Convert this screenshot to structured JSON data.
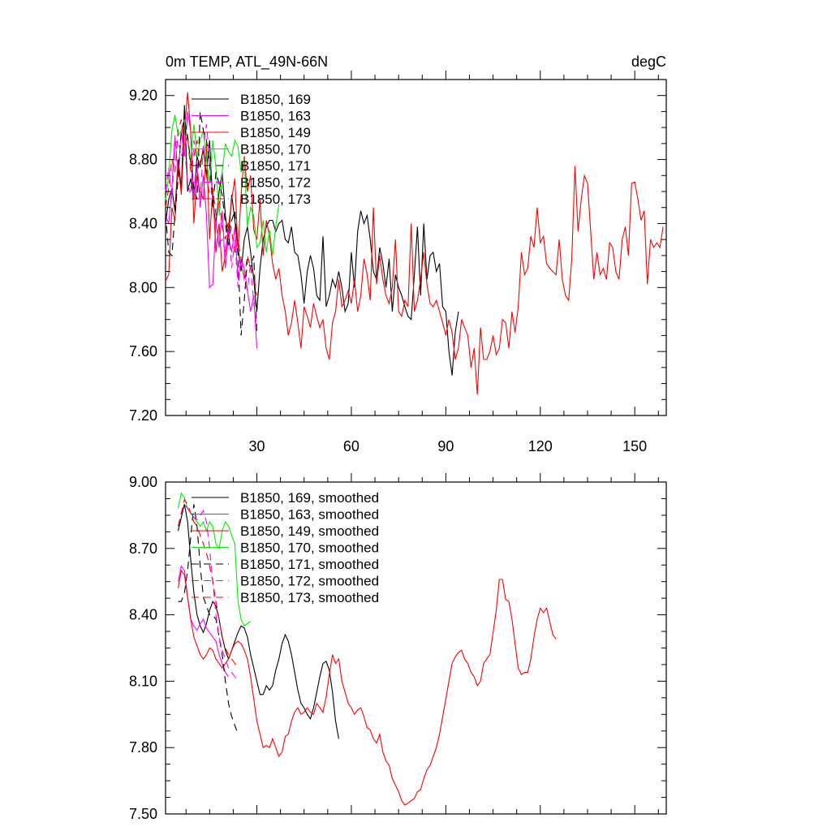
{
  "figure": {
    "title_left": "0m TEMP, ATL_49N-66N",
    "title_right": "degC"
  },
  "chart_data": [
    {
      "type": "line",
      "title": "0m TEMP, ATL_49N-66N",
      "units": "degC",
      "xlabel": "",
      "ylabel": "",
      "xlim": [
        1,
        160
      ],
      "ylim": [
        7.2,
        9.3
      ],
      "x_ticks": [
        30,
        60,
        90,
        120,
        150
      ],
      "x_tick_labels": [
        "30",
        "60",
        "90",
        "120",
        "150"
      ],
      "y_ticks": [
        7.2,
        7.6,
        8.0,
        8.4,
        8.8,
        9.2
      ],
      "y_tick_labels": [
        "7.20",
        "7.60",
        "8.00",
        "8.40",
        "8.80",
        "9.20"
      ],
      "grid": false,
      "legend_position": "top-left",
      "series": [
        {
          "name": "B1850, 169",
          "color": "#000000",
          "dash": "solid",
          "x_start": 1,
          "values": [
            8.4,
            8.55,
            8.62,
            8.48,
            8.8,
            8.62,
            9.14,
            8.6,
            8.68,
            8.55,
            8.82,
            8.75,
            8.88,
            8.7,
            8.92,
            8.52,
            8.4,
            8.6,
            8.72,
            8.45,
            8.3,
            8.58,
            8.42,
            8.25,
            8.1,
            8.3,
            8.38,
            8.22,
            8.05,
            7.85,
            8.12,
            8.3,
            8.38,
            8.42,
            8.42,
            8.35,
            8.4,
            8.42,
            8.3,
            8.28,
            8.38,
            8.22,
            8.2,
            8.08,
            7.9,
            8.1,
            8.2,
            8.12,
            7.95,
            7.92,
            8.32,
            7.88,
            7.95,
            8.05,
            8.0,
            8.1,
            8.0,
            7.85,
            7.9,
            8.22,
            8.0,
            8.35,
            8.48,
            8.4,
            8.45,
            8.3,
            8.1,
            8.05,
            8.25,
            8.15,
            8.0,
            8.18,
            7.85,
            8.08,
            8.0,
            7.95,
            7.88,
            7.82,
            7.8,
            8.08,
            8.38,
            7.95,
            8.4,
            8.05,
            8.2,
            8.22,
            8.1,
            8.15,
            7.88,
            7.85,
            7.6,
            7.45,
            7.72,
            7.85
          ],
          "note": ""
        },
        {
          "name": "B1850, 163",
          "color": "#ff00ff",
          "dash": "solid",
          "x_start": 1,
          "values": [
            8.45,
            8.4,
            8.62,
            8.95,
            8.7,
            8.98,
            8.82,
            9.1,
            8.98,
            8.55,
            8.76,
            8.5,
            8.7,
            8.45,
            8.0,
            8.02,
            8.42,
            8.25,
            8.48,
            8.12,
            8.32,
            8.22,
            8.38,
            8.05,
            8.18,
            8.12,
            7.98,
            7.85,
            7.95,
            7.62
          ]
        },
        {
          "name": "B1850, 149",
          "color": "#ff0000",
          "dash": "solid",
          "x_start": 1,
          "values": [
            8.04,
            8.08,
            8.5,
            8.42,
            8.78,
            8.58,
            8.98,
            9.22,
            8.98,
            8.4,
            8.7,
            8.6,
            8.55,
            8.9,
            8.3,
            8.62,
            8.22,
            8.4,
            8.1,
            8.2,
            8.38,
            8.55,
            8.68,
            8.22,
            8.58,
            8.82,
            8.6,
            8.7,
            8.36,
            8.3,
            8.55,
            8.2,
            8.42,
            8.32,
            8.15,
            8.05,
            8.12,
            7.95,
            7.85,
            7.7,
            7.78,
            7.92,
            7.78,
            7.62,
            7.88,
            7.82,
            7.75,
            7.9,
            7.82,
            7.75,
            7.8,
            7.62,
            7.55,
            7.78,
            7.85,
            8.05,
            7.88,
            7.92,
            7.98,
            7.9,
            8.05,
            7.85,
            7.95,
            8.18,
            8.08,
            7.92,
            8.5,
            8.02,
            8.2,
            8.05,
            7.95,
            7.9,
            8.0,
            8.3,
            7.85,
            7.82,
            7.92,
            7.88,
            8.4,
            7.85,
            7.92,
            8.05,
            8.22,
            8.02,
            7.9,
            7.88,
            7.92,
            7.85,
            7.78,
            7.7,
            7.8,
            7.72,
            7.55,
            7.62,
            7.8,
            7.75,
            7.7,
            7.5,
            7.62,
            7.33,
            7.75,
            7.55,
            7.55,
            7.6,
            7.7,
            7.58,
            7.62,
            7.8,
            7.78,
            7.62,
            7.85,
            7.72,
            7.88,
            8.22,
            8.08,
            8.12,
            8.32,
            8.25,
            8.5,
            8.28,
            8.32,
            8.15,
            8.12,
            8.1,
            8.08,
            8.3,
            8.05,
            7.95,
            7.92,
            8.18,
            8.76,
            8.35,
            8.55,
            8.7,
            8.65,
            8.35,
            8.05,
            8.22,
            8.08,
            8.12,
            8.05,
            8.28,
            8.25,
            8.1,
            8.05,
            8.3,
            8.38,
            8.2,
            8.65,
            8.66,
            8.55,
            8.42,
            8.48,
            8.02,
            8.3,
            8.25,
            8.28,
            8.25,
            8.38
          ]
        },
        {
          "name": "B1850, 170",
          "color": "#00ee00",
          "dash": "solid",
          "x_start": 1,
          "values": [
            8.55,
            8.7,
            8.98,
            9.08,
            8.95,
            8.98,
            9.05,
            8.92,
            8.8,
            9.02,
            8.82,
            8.92,
            8.98,
            8.8,
            8.65,
            8.92,
            8.75,
            8.45,
            8.72,
            8.9,
            8.85,
            8.82,
            8.92,
            8.88,
            8.72,
            8.8,
            8.38,
            8.5,
            8.45,
            8.25,
            8.28,
            8.42,
            8.22,
            8.36,
            8.2,
            8.38,
            8.52
          ]
        },
        {
          "name": "B1850, 171",
          "color": "#000000",
          "dash": "dash",
          "x_start": 1,
          "values": [
            8.46,
            8.22,
            8.2,
            8.45,
            8.68,
            8.98,
            9.05,
            8.95,
            8.78,
            8.62,
            8.55,
            9.1,
            8.98,
            8.92,
            8.78,
            8.5,
            8.72,
            8.65,
            8.58,
            8.4,
            8.25,
            8.42,
            8.48,
            8.2,
            7.7,
            7.92,
            8.18,
            8.12,
            8.2,
            7.72
          ]
        },
        {
          "name": "B1850, 172",
          "color": "#ff00ff",
          "dash": "dash",
          "x_start": 1,
          "values": [
            8.6,
            8.75,
            8.55,
            8.9,
            8.92,
            8.82,
            8.88,
            8.65,
            8.58,
            8.92,
            8.78,
            8.55,
            8.88,
            9.02,
            8.8,
            8.55,
            8.4,
            8.28,
            8.3,
            8.22,
            8.38,
            8.12,
            8.3,
            8.0,
            8.18,
            8.05,
            7.98,
            8.15,
            7.9,
            7.75
          ]
        },
        {
          "name": "B1850, 173",
          "color": "#ff0000",
          "dash": "dash",
          "x_start": 1,
          "values": [
            8.5,
            8.62,
            8.8,
            8.72,
            8.98,
            9.05,
            8.88,
            8.95,
            8.72,
            8.82,
            8.92,
            8.78,
            8.85,
            8.7,
            8.58,
            8.62,
            8.45,
            8.55,
            8.38,
            8.3,
            8.42,
            8.35,
            8.22,
            8.3,
            8.18,
            8.05,
            8.2,
            8.12,
            8.08,
            7.95
          ]
        }
      ]
    },
    {
      "type": "line",
      "title": "",
      "xlabel": "",
      "ylabel": "",
      "xlim": [
        1,
        160
      ],
      "ylim": [
        7.5,
        9.0
      ],
      "x_ticks": [
        30,
        60,
        90,
        120,
        150
      ],
      "x_tick_labels": [],
      "y_ticks": [
        7.5,
        7.8,
        8.1,
        8.4,
        8.7,
        9.0
      ],
      "y_tick_labels": [
        "7.50",
        "7.80",
        "8.10",
        "8.40",
        "8.70",
        "9.00"
      ],
      "grid": false,
      "legend_position": "top-left",
      "series": [
        {
          "name": "B1850, 169, smoothed",
          "color": "#000000",
          "dash": "solid",
          "x_start": 5,
          "values": [
            8.78,
            8.84,
            8.9,
            8.82,
            8.65,
            8.5,
            8.4,
            8.35,
            8.32,
            8.36,
            8.42,
            8.46,
            8.44,
            8.38,
            8.3,
            8.24,
            8.2,
            8.24,
            8.28,
            8.32,
            8.35,
            8.34,
            8.3,
            8.22,
            8.16,
            8.1,
            8.04,
            8.04,
            8.08,
            8.06,
            8.08,
            8.15,
            8.2,
            8.27,
            8.31,
            8.28,
            8.22,
            8.14,
            8.06,
            8.0,
            7.98,
            7.95,
            7.93,
            7.98,
            8.05,
            8.12,
            8.18,
            8.19,
            8.15,
            8.05,
            7.92,
            7.84
          ]
        },
        {
          "name": "B1850, 163, smoothed",
          "color": "#ff00ff",
          "dash": "solid",
          "x_start": 5,
          "values": [
            8.55,
            8.62,
            8.6,
            8.48,
            8.38,
            8.35,
            8.33,
            8.36,
            8.38,
            8.34,
            8.32,
            8.3,
            8.28,
            8.22,
            8.18,
            8.14,
            8.12
          ]
        },
        {
          "name": "B1850, 149, smoothed",
          "color": "#ff0000",
          "dash": "solid",
          "x_start": 5,
          "values": [
            8.52,
            8.6,
            8.58,
            8.48,
            8.38,
            8.3,
            8.26,
            8.22,
            8.2,
            8.22,
            8.25,
            8.24,
            8.2,
            8.18,
            8.16,
            8.18,
            8.2,
            8.24,
            8.27,
            8.28,
            8.27,
            8.24,
            8.2,
            8.12,
            8.02,
            7.92,
            7.86,
            7.8,
            7.81,
            7.8,
            7.84,
            7.8,
            7.76,
            7.78,
            7.85,
            7.86,
            7.92,
            7.96,
            7.98,
            7.95,
            7.96,
            7.98,
            7.96,
            7.95,
            8.0,
            7.98,
            7.96,
            8.03,
            8.13,
            8.22,
            8.18,
            8.2,
            8.1,
            8.05,
            8.0,
            7.98,
            7.95,
            7.97,
            7.98,
            7.94,
            7.89,
            7.88,
            7.84,
            7.82,
            7.86,
            7.78,
            7.74,
            7.72,
            7.66,
            7.63,
            7.6,
            7.56,
            7.54,
            7.55,
            7.56,
            7.57,
            7.6,
            7.61,
            7.66,
            7.7,
            7.72,
            7.76,
            7.8,
            7.86,
            7.94,
            8.02,
            8.1,
            8.18,
            8.21,
            8.23,
            8.24,
            8.2,
            8.18,
            8.14,
            8.12,
            8.08,
            8.1,
            8.18,
            8.2,
            8.22,
            8.32,
            8.42,
            8.56,
            8.56,
            8.47,
            8.46,
            8.38,
            8.27,
            8.16,
            8.13,
            8.14,
            8.14,
            8.2,
            8.3,
            8.38,
            8.43,
            8.41,
            8.43,
            8.37,
            8.31,
            8.29
          ]
        },
        {
          "name": "B1850, 170, smoothed",
          "color": "#00ee00",
          "dash": "solid",
          "x_start": 5,
          "values": [
            8.88,
            8.95,
            8.93,
            8.88,
            8.86,
            8.84,
            8.82,
            8.8,
            8.82,
            8.78,
            8.82,
            8.8,
            8.72,
            8.7,
            8.78,
            8.82,
            8.8,
            8.76,
            8.72,
            8.46,
            8.38,
            8.35,
            8.36,
            8.37
          ]
        },
        {
          "name": "B1850, 171, smoothed",
          "color": "#000000",
          "dash": "dash",
          "x_start": 5,
          "values": [
            8.46,
            8.46,
            8.5,
            8.6,
            8.75,
            8.9,
            8.8,
            8.62,
            8.48,
            8.44,
            8.4,
            8.4,
            8.38,
            8.3,
            8.22,
            8.1,
            8.0,
            7.94,
            7.9,
            7.86
          ]
        },
        {
          "name": "B1850, 172, smoothed",
          "color": "#ff00ff",
          "dash": "dash",
          "x_start": 5,
          "values": [
            8.8,
            8.86,
            8.9,
            8.88,
            8.86,
            8.84,
            8.83,
            8.85,
            8.87,
            8.82,
            8.7,
            8.55,
            8.4,
            8.3,
            8.24,
            8.2,
            8.16,
            8.14,
            8.12,
            8.1
          ]
        },
        {
          "name": "B1850, 173, smoothed",
          "color": "#ff0000",
          "dash": "dash",
          "x_start": 5,
          "values": [
            8.8,
            8.86,
            8.92,
            8.9,
            8.86,
            8.82,
            8.8,
            8.76,
            8.72,
            8.68,
            8.62,
            8.55,
            8.46,
            8.38,
            8.3,
            8.25,
            8.22,
            8.2,
            8.18,
            8.16
          ]
        }
      ]
    }
  ]
}
